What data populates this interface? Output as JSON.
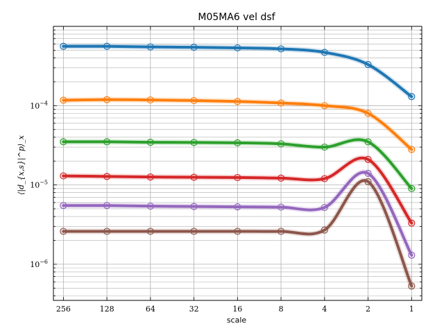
{
  "chart_data": {
    "type": "line",
    "title": "M05MA6 vel dsf",
    "xlabel": "scale",
    "ylabel": "⟨|d_{x,s}|^p⟩_x",
    "x_scale": "log2-reversed",
    "y_scale": "log",
    "xlim": [
      300,
      0.85
    ],
    "ylim": [
      3.5e-07,
      0.001
    ],
    "grid": true,
    "x": [
      256,
      128,
      64,
      32,
      16,
      8,
      4,
      2,
      1
    ],
    "x_tick_labels": [
      "256",
      "128",
      "64",
      "32",
      "16",
      "8",
      "4",
      "2",
      "1"
    ],
    "y_ticks": [
      1e-06,
      1e-05,
      0.0001
    ],
    "y_tick_labels": [
      "10",
      "10",
      "10"
    ],
    "y_tick_exponents": [
      "−6",
      "−5",
      "−4"
    ],
    "series": [
      {
        "color": "#1f77b4",
        "values": [
          0.00056,
          0.00056,
          0.00055,
          0.000545,
          0.000535,
          0.00052,
          0.00047,
          0.00033,
          0.00013
        ]
      },
      {
        "color": "#ff7f0e",
        "values": [
          0.000117,
          0.000119,
          0.000118,
          0.000116,
          0.000113,
          0.000108,
          0.0001,
          8e-05,
          2.8e-05
        ]
      },
      {
        "color": "#2ca02c",
        "values": [
          3.5e-05,
          3.5e-05,
          3.45e-05,
          3.43e-05,
          3.4e-05,
          3.3e-05,
          3e-05,
          3.5e-05,
          9e-06
        ]
      },
      {
        "color": "#d62728",
        "values": [
          1.3e-05,
          1.28e-05,
          1.26e-05,
          1.25e-05,
          1.24e-05,
          1.22e-05,
          1.2e-05,
          2.1e-05,
          3.3e-06
        ]
      },
      {
        "color": "#9467bd",
        "values": [
          5.5e-06,
          5.5e-06,
          5.4e-06,
          5.35e-06,
          5.3e-06,
          5.25e-06,
          5.2e-06,
          1.4e-05,
          1.3e-06
        ]
      },
      {
        "color": "#8c564b",
        "values": [
          2.6e-06,
          2.6e-06,
          2.6e-06,
          2.6e-06,
          2.6e-06,
          2.6e-06,
          2.7e-06,
          1.1e-05,
          5.3e-07
        ]
      }
    ]
  }
}
